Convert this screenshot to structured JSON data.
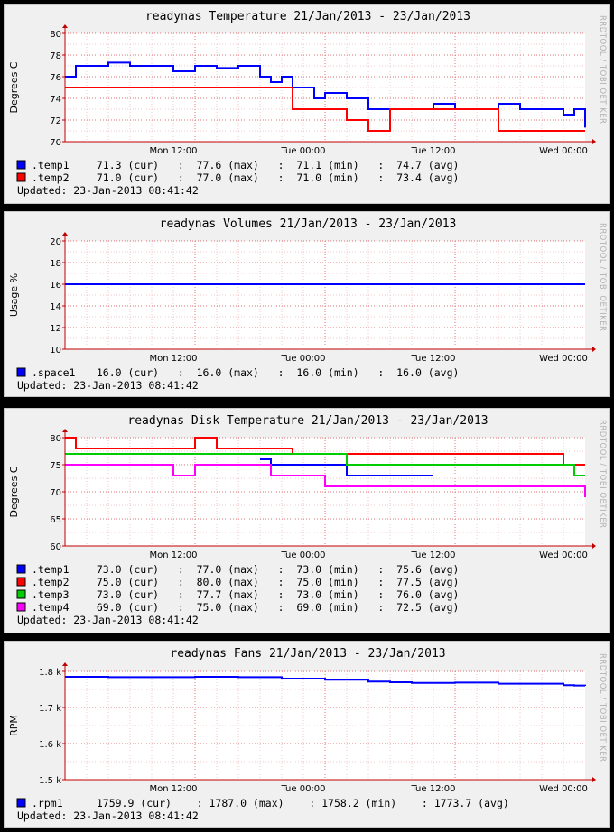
{
  "watermark": "RRDTOOL / TOBI OETIKER",
  "x_ticks": [
    "Mon 12:00",
    "Tue 00:00",
    "Tue 12:00",
    "Wed 00:00"
  ],
  "updated": "Updated: 23-Jan-2013 08:41:42",
  "chart_data": [
    {
      "type": "line",
      "title": "readynas Temperature 21/Jan/2013 - 23/Jan/2013",
      "ylabel": "Degrees C",
      "ylim": [
        70,
        80
      ],
      "yticks": [
        "70",
        "72",
        "74",
        "76",
        "78",
        "80"
      ],
      "x_range_hours": [
        0,
        48
      ],
      "x": [
        0,
        1,
        2,
        4,
        6,
        8,
        10,
        12,
        14,
        16,
        18,
        19,
        20,
        21,
        22,
        23,
        24,
        26,
        28,
        30,
        32,
        34,
        36,
        38,
        40,
        42,
        44,
        46,
        47,
        48
      ],
      "series": [
        {
          "name": ".temp1",
          "color": "#0000ff",
          "legend": "  71.3 (cur)   :  77.6 (max)   :  71.1 (min)   :  74.7 (avg)",
          "values": [
            76,
            77,
            77,
            77.3,
            77,
            77,
            76.5,
            77,
            76.8,
            77,
            76,
            75.5,
            76,
            75,
            75,
            74,
            74.5,
            74,
            73,
            73,
            73,
            73.5,
            73,
            73,
            73.5,
            73,
            73,
            72.5,
            73,
            71.3
          ]
        },
        {
          "name": ".temp2",
          "color": "#ff0000",
          "legend": "  71.0 (cur)   :  77.0 (max)   :  71.0 (min)   :  73.4 (avg)",
          "values": [
            75,
            75,
            75,
            75,
            75,
            75,
            75,
            75,
            75,
            75,
            75,
            75,
            75,
            73,
            73,
            73,
            73,
            72,
            71,
            73,
            73,
            73,
            73,
            73,
            71,
            71,
            71,
            71,
            71,
            71
          ]
        }
      ]
    },
    {
      "type": "line",
      "title": "readynas Volumes 21/Jan/2013 - 23/Jan/2013",
      "ylabel": "Usage %",
      "ylim": [
        10,
        20
      ],
      "yticks": [
        "10",
        "12",
        "14",
        "16",
        "18",
        "20"
      ],
      "x_range_hours": [
        0,
        48
      ],
      "x": [
        0,
        48
      ],
      "series": [
        {
          "name": ".space1",
          "color": "#0000ff",
          "legend": "  16.0 (cur)   :  16.0 (max)   :  16.0 (min)   :  16.0 (avg)",
          "values": [
            16,
            16
          ]
        }
      ]
    },
    {
      "type": "line",
      "title": "readynas Disk Temperature 21/Jan/2013 - 23/Jan/2013",
      "ylabel": "Degrees C",
      "ylim": [
        60,
        80
      ],
      "yticks": [
        "60",
        "65",
        "70",
        "75",
        "80"
      ],
      "x_range_hours": [
        0,
        48
      ],
      "x": [
        0,
        1,
        2,
        4,
        6,
        8,
        10,
        11,
        12,
        13,
        14,
        16,
        18,
        19,
        20,
        21,
        22,
        24,
        26,
        28,
        30,
        32,
        34,
        36,
        38,
        40,
        42,
        44,
        46,
        47,
        48
      ],
      "series": [
        {
          "name": ".temp1",
          "color": "#0000ff",
          "legend": "  73.0 (cur)   :  77.0 (max)   :  73.0 (min)   :  75.6 (avg)",
          "values": [
            null,
            null,
            null,
            null,
            null,
            null,
            null,
            null,
            null,
            null,
            null,
            null,
            76,
            75,
            75,
            75,
            75,
            75,
            73,
            73,
            73,
            73,
            73,
            null,
            null,
            null,
            null,
            null,
            null,
            null,
            null
          ]
        },
        {
          "name": ".temp2",
          "color": "#ff0000",
          "legend": "  75.0 (cur)   :  80.0 (max)   :  75.0 (min)   :  77.5 (avg)",
          "values": [
            80,
            78,
            78,
            78,
            78,
            78,
            78,
            78,
            80,
            80,
            78,
            78,
            78,
            78,
            78,
            77,
            77,
            77,
            77,
            77,
            77,
            77,
            77,
            77,
            77,
            77,
            77,
            77,
            75,
            75,
            75
          ]
        },
        {
          "name": ".temp3",
          "color": "#00cc00",
          "legend": "  73.0 (cur)   :  77.7 (max)   :  73.0 (min)   :  76.0 (avg)",
          "values": [
            77,
            77,
            77,
            77,
            77,
            77,
            77,
            77,
            77,
            77,
            77,
            77,
            77,
            77,
            77,
            77,
            77,
            77,
            75,
            75,
            75,
            75,
            75,
            75,
            75,
            75,
            75,
            75,
            75,
            73,
            73
          ]
        },
        {
          "name": ".temp4",
          "color": "#ff00ff",
          "legend": "  69.0 (cur)   :  75.0 (max)   :  69.0 (min)   :  72.5 (avg)",
          "values": [
            75,
            75,
            75,
            75,
            75,
            75,
            73,
            73,
            75,
            75,
            75,
            75,
            75,
            73,
            73,
            73,
            73,
            71,
            71,
            71,
            71,
            71,
            71,
            71,
            71,
            71,
            71,
            71,
            71,
            71,
            69
          ]
        }
      ]
    },
    {
      "type": "line",
      "title": "readynas Fans 21/Jan/2013 - 23/Jan/2013",
      "ylabel": "RPM",
      "ylim": [
        1500,
        1800
      ],
      "yticks": [
        "1.5 k",
        "1.6 k",
        "1.7 k",
        "1.8 k"
      ],
      "x_range_hours": [
        0,
        48
      ],
      "x": [
        0,
        4,
        8,
        12,
        16,
        20,
        24,
        28,
        30,
        32,
        36,
        40,
        44,
        46,
        47,
        48
      ],
      "series": [
        {
          "name": ".rpm1",
          "color": "#0000ff",
          "legend": "  1759.9 (cur)    : 1787.0 (max)    : 1758.2 (min)    : 1773.7 (avg)",
          "values": [
            1785,
            1784,
            1784,
            1785,
            1784,
            1780,
            1777,
            1772,
            1770,
            1768,
            1769,
            1766,
            1766,
            1762,
            1761,
            1760
          ]
        }
      ]
    }
  ]
}
